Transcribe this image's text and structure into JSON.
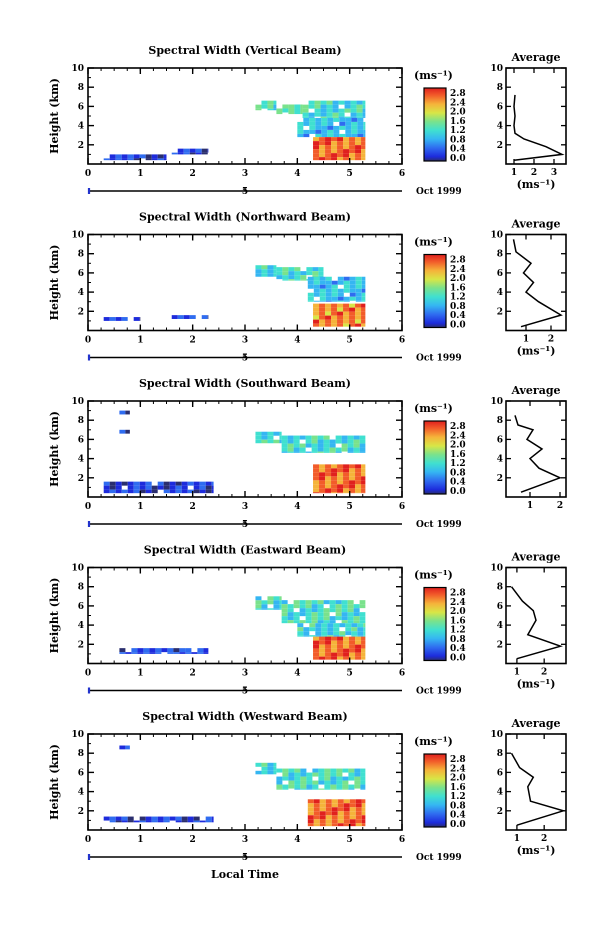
{
  "figure": {
    "xlabel": "Local Time",
    "date_label": "Oct 1999",
    "date_marker": "5",
    "avg_title": "Average"
  },
  "chart_data": [
    {
      "type": "heatmap",
      "title": "Spectral Width (Vertical Beam)",
      "ylabel": "Height (km)",
      "xlabel": "Local Time",
      "xlim": [
        0,
        6
      ],
      "ylim": [
        0,
        10
      ],
      "x_ticks": [
        "0",
        "1",
        "2",
        "3",
        "4",
        "5",
        "6"
      ],
      "y_ticks": [
        "2",
        "4",
        "6",
        "8",
        "10"
      ],
      "colorbar": {
        "unit": "(ms⁻¹)",
        "ticks": [
          "0.0",
          "0.4",
          "0.8",
          "1.2",
          "1.6",
          "2.0",
          "2.4",
          "2.8"
        ]
      },
      "regions": [
        {
          "x": [
            3.2,
            3.6
          ],
          "y": [
            5.6,
            6.6
          ],
          "value": 1.3
        },
        {
          "x": [
            3.6,
            4.1
          ],
          "y": [
            5.2,
            6.2
          ],
          "value": 1.5
        },
        {
          "x": [
            4.1,
            5.3
          ],
          "y": [
            4.8,
            6.6
          ],
          "value": 1.3
        },
        {
          "x": [
            4.0,
            5.3
          ],
          "y": [
            2.8,
            4.8
          ],
          "value": 1.1
        },
        {
          "x": [
            4.3,
            5.3
          ],
          "y": [
            0.4,
            2.8
          ],
          "value": 2.6
        },
        {
          "x": [
            0.3,
            1.5
          ],
          "y": [
            0.4,
            1.0
          ],
          "value": 0.4
        },
        {
          "x": [
            1.6,
            2.3
          ],
          "y": [
            1.0,
            1.6
          ],
          "value": 0.3
        }
      ],
      "average": {
        "xlabel": "(ms⁻¹)",
        "x_ticks": [
          "1",
          "2",
          "3"
        ],
        "y_ticks": [
          "2",
          "4",
          "6",
          "8",
          "10"
        ],
        "xlim": [
          0.6,
          3.6
        ],
        "ylim": [
          0,
          10
        ],
        "profile": [
          [
            1.0,
            0.4
          ],
          [
            3.4,
            1.0
          ],
          [
            2.6,
            1.8
          ],
          [
            1.5,
            2.6
          ],
          [
            1.05,
            3.2
          ],
          [
            1.0,
            4.0
          ],
          [
            1.05,
            5.0
          ],
          [
            1.0,
            6.0
          ],
          [
            1.05,
            7.2
          ]
        ]
      }
    },
    {
      "type": "heatmap",
      "title": "Spectral Width (Northward Beam)",
      "ylabel": "Height (km)",
      "xlabel": "Local Time",
      "xlim": [
        0,
        6
      ],
      "ylim": [
        0,
        10
      ],
      "x_ticks": [
        "0",
        "1",
        "2",
        "3",
        "4",
        "5",
        "6"
      ],
      "y_ticks": [
        "2",
        "4",
        "6",
        "8",
        "10"
      ],
      "colorbar": {
        "unit": "(ms⁻¹)",
        "ticks": [
          "0.0",
          "0.4",
          "0.8",
          "1.2",
          "1.6",
          "2.0",
          "2.4",
          "2.8"
        ]
      },
      "regions": [
        {
          "x": [
            3.2,
            3.6
          ],
          "y": [
            5.6,
            6.8
          ],
          "value": 1.3
        },
        {
          "x": [
            3.6,
            4.5
          ],
          "y": [
            5.2,
            6.6
          ],
          "value": 1.4
        },
        {
          "x": [
            4.2,
            5.3
          ],
          "y": [
            3.0,
            5.6
          ],
          "value": 1.1
        },
        {
          "x": [
            4.3,
            5.3
          ],
          "y": [
            0.4,
            2.8
          ],
          "value": 2.5
        },
        {
          "x": [
            0.3,
            1.0
          ],
          "y": [
            1.0,
            1.4
          ],
          "value": 0.4
        },
        {
          "x": [
            1.6,
            2.3
          ],
          "y": [
            1.2,
            1.6
          ],
          "value": 0.5
        }
      ],
      "average": {
        "xlabel": "(ms⁻¹)",
        "x_ticks": [
          "1",
          "2"
        ],
        "y_ticks": [
          "2",
          "4",
          "6",
          "8",
          "10"
        ],
        "xlim": [
          0.2,
          2.6
        ],
        "ylim": [
          0,
          10
        ],
        "profile": [
          [
            0.8,
            0.4
          ],
          [
            2.4,
            1.6
          ],
          [
            1.5,
            3.0
          ],
          [
            1.0,
            4.0
          ],
          [
            1.3,
            5.0
          ],
          [
            0.9,
            6.0
          ],
          [
            1.2,
            7.0
          ],
          [
            0.6,
            8.2
          ],
          [
            0.5,
            9.5
          ]
        ]
      }
    },
    {
      "type": "heatmap",
      "title": "Spectral Width (Southward Beam)",
      "ylabel": "Height (km)",
      "xlabel": "Local Time",
      "xlim": [
        0,
        6
      ],
      "ylim": [
        0,
        10
      ],
      "x_ticks": [
        "0",
        "1",
        "2",
        "3",
        "4",
        "5",
        "6"
      ],
      "y_ticks": [
        "2",
        "4",
        "6",
        "8",
        "10"
      ],
      "colorbar": {
        "unit": "(ms⁻¹)",
        "ticks": [
          "0.0",
          "0.4",
          "0.8",
          "1.2",
          "1.6",
          "2.0",
          "2.4",
          "2.8"
        ]
      },
      "regions": [
        {
          "x": [
            3.2,
            3.7
          ],
          "y": [
            5.6,
            6.8
          ],
          "value": 1.3
        },
        {
          "x": [
            3.7,
            5.3
          ],
          "y": [
            4.6,
            6.4
          ],
          "value": 1.3
        },
        {
          "x": [
            4.3,
            5.3
          ],
          "y": [
            0.4,
            3.4
          ],
          "value": 2.6
        },
        {
          "x": [
            0.6,
            0.8
          ],
          "y": [
            8.6,
            9.0
          ],
          "value": 0.4
        },
        {
          "x": [
            0.6,
            0.8
          ],
          "y": [
            6.6,
            7.0
          ],
          "value": 0.4
        },
        {
          "x": [
            0.3,
            2.4
          ],
          "y": [
            0.4,
            1.6
          ],
          "value": 0.4
        }
      ],
      "average": {
        "xlabel": "",
        "x_ticks": [
          "1",
          "2"
        ],
        "y_ticks": [
          "2",
          "4",
          "6",
          "8",
          "10"
        ],
        "xlim": [
          0.2,
          2.2
        ],
        "ylim": [
          0,
          10
        ],
        "profile": [
          [
            0.7,
            0.5
          ],
          [
            2.0,
            2.0
          ],
          [
            1.3,
            3.0
          ],
          [
            1.0,
            4.0
          ],
          [
            1.4,
            5.0
          ],
          [
            0.9,
            6.0
          ],
          [
            1.1,
            7.0
          ],
          [
            0.6,
            7.5
          ],
          [
            0.5,
            8.5
          ]
        ]
      }
    },
    {
      "type": "heatmap",
      "title": "Spectral Width (Eastward Beam)",
      "ylabel": "Height (km)",
      "xlabel": "Local Time",
      "xlim": [
        0,
        6
      ],
      "ylim": [
        0,
        10
      ],
      "x_ticks": [
        "0",
        "1",
        "2",
        "3",
        "4",
        "5",
        "6"
      ],
      "y_ticks": [
        "2",
        "4",
        "6",
        "8",
        "10"
      ],
      "colorbar": {
        "unit": "(ms⁻¹)",
        "ticks": [
          "0.0",
          "0.4",
          "0.8",
          "1.2",
          "1.6",
          "2.0",
          "2.4",
          "2.8"
        ]
      },
      "regions": [
        {
          "x": [
            3.2,
            3.7
          ],
          "y": [
            5.6,
            7.0
          ],
          "value": 1.3
        },
        {
          "x": [
            3.7,
            5.3
          ],
          "y": [
            4.2,
            6.6
          ],
          "value": 1.4
        },
        {
          "x": [
            4.0,
            5.3
          ],
          "y": [
            2.8,
            4.2
          ],
          "value": 1.2
        },
        {
          "x": [
            4.3,
            5.3
          ],
          "y": [
            0.4,
            2.8
          ],
          "value": 2.6
        },
        {
          "x": [
            0.6,
            2.3
          ],
          "y": [
            1.0,
            1.6
          ],
          "value": 0.5
        }
      ],
      "average": {
        "xlabel": "(ms⁻¹)",
        "x_ticks": [
          "1",
          "2"
        ],
        "y_ticks": [
          "2",
          "4",
          "6",
          "8",
          "10"
        ],
        "xlim": [
          0.6,
          2.8
        ],
        "ylim": [
          0,
          10
        ],
        "profile": [
          [
            1.0,
            0.5
          ],
          [
            2.6,
            1.8
          ],
          [
            1.4,
            3.0
          ],
          [
            1.7,
            4.5
          ],
          [
            1.6,
            5.5
          ],
          [
            1.2,
            6.5
          ],
          [
            0.8,
            8.0
          ]
        ]
      }
    },
    {
      "type": "heatmap",
      "title": "Spectral Width (Westward Beam)",
      "ylabel": "Height (km)",
      "xlabel": "Local Time",
      "xlim": [
        0,
        6
      ],
      "ylim": [
        0,
        10
      ],
      "x_ticks": [
        "0",
        "1",
        "2",
        "3",
        "4",
        "5",
        "6"
      ],
      "y_ticks": [
        "2",
        "4",
        "6",
        "8",
        "10"
      ],
      "colorbar": {
        "unit": "(ms⁻¹)",
        "ticks": [
          "0.0",
          "0.4",
          "0.8",
          "1.2",
          "1.6",
          "2.0",
          "2.4",
          "2.8"
        ]
      },
      "regions": [
        {
          "x": [
            3.2,
            3.6
          ],
          "y": [
            5.8,
            7.0
          ],
          "value": 1.3
        },
        {
          "x": [
            3.6,
            5.3
          ],
          "y": [
            4.2,
            6.4
          ],
          "value": 1.4
        },
        {
          "x": [
            4.2,
            5.3
          ],
          "y": [
            0.4,
            3.2
          ],
          "value": 2.6
        },
        {
          "x": [
            0.6,
            0.8
          ],
          "y": [
            8.4,
            8.8
          ],
          "value": 0.4
        },
        {
          "x": [
            0.3,
            2.4
          ],
          "y": [
            0.8,
            1.4
          ],
          "value": 0.4
        }
      ],
      "average": {
        "xlabel": "(ms⁻¹)",
        "x_ticks": [
          "1",
          "2"
        ],
        "y_ticks": [
          "2",
          "4",
          "6",
          "8",
          "10"
        ],
        "xlim": [
          0.6,
          2.8
        ],
        "ylim": [
          0,
          10
        ],
        "profile": [
          [
            1.0,
            0.5
          ],
          [
            2.7,
            2.0
          ],
          [
            1.5,
            3.0
          ],
          [
            1.4,
            4.5
          ],
          [
            1.6,
            5.5
          ],
          [
            1.1,
            6.5
          ],
          [
            0.8,
            8.0
          ]
        ]
      }
    }
  ]
}
